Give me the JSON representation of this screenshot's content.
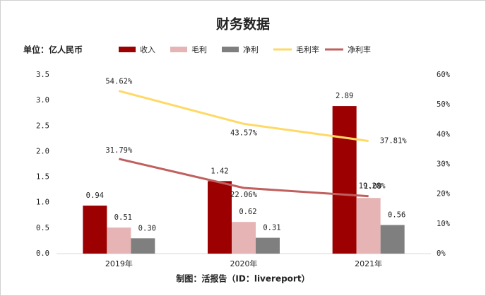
{
  "chart_data": {
    "type": "bar",
    "title": "财务数据",
    "unit_label": "单位：亿人民币",
    "source": "制图：活报告（ID：livereport）",
    "categories": [
      "2019年",
      "2020年",
      "2021年"
    ],
    "series": [
      {
        "name": "收入",
        "type": "bar",
        "color": "#9c0000",
        "values": [
          0.94,
          1.42,
          2.89
        ]
      },
      {
        "name": "毛利",
        "type": "bar",
        "color": "#e6b4b4",
        "values": [
          0.51,
          0.62,
          1.09
        ]
      },
      {
        "name": "净利",
        "type": "bar",
        "color": "#7f7f7f",
        "values": [
          0.3,
          0.31,
          0.56
        ],
        "value_labels": [
          "0.30",
          "0.31",
          "0.56"
        ]
      },
      {
        "name": "毛利率",
        "type": "line",
        "axis": "y2",
        "color": "#ffd966",
        "values": [
          54.62,
          43.57,
          37.81
        ],
        "value_labels": [
          "54.62%",
          "43.57%",
          "37.81%"
        ]
      },
      {
        "name": "净利率",
        "type": "line",
        "axis": "y2",
        "color": "#c0605e",
        "values": [
          31.79,
          22.06,
          19.28
        ],
        "value_labels": [
          "31.79%",
          "22.06%",
          "19.28%"
        ]
      }
    ],
    "ylim": [
      0,
      3.5
    ],
    "yticks": [
      {
        "value": 0,
        "label": "0.0"
      },
      0.5,
      {
        "value": 1,
        "label": "1.0"
      },
      1.5,
      {
        "value": 2,
        "label": "2.0"
      },
      2.5,
      {
        "value": 3,
        "label": "3.0"
      },
      3.5
    ],
    "y2lim": [
      0,
      60
    ],
    "y2ticks": [
      {
        "value": 0,
        "label": "0%"
      },
      {
        "value": 10,
        "label": "10%"
      },
      {
        "value": 20,
        "label": "20%"
      },
      {
        "value": 30,
        "label": "30%"
      },
      {
        "value": 40,
        "label": "40%"
      },
      {
        "value": 50,
        "label": "50%"
      },
      {
        "value": 60,
        "label": "60%"
      }
    ],
    "grid": false
  }
}
